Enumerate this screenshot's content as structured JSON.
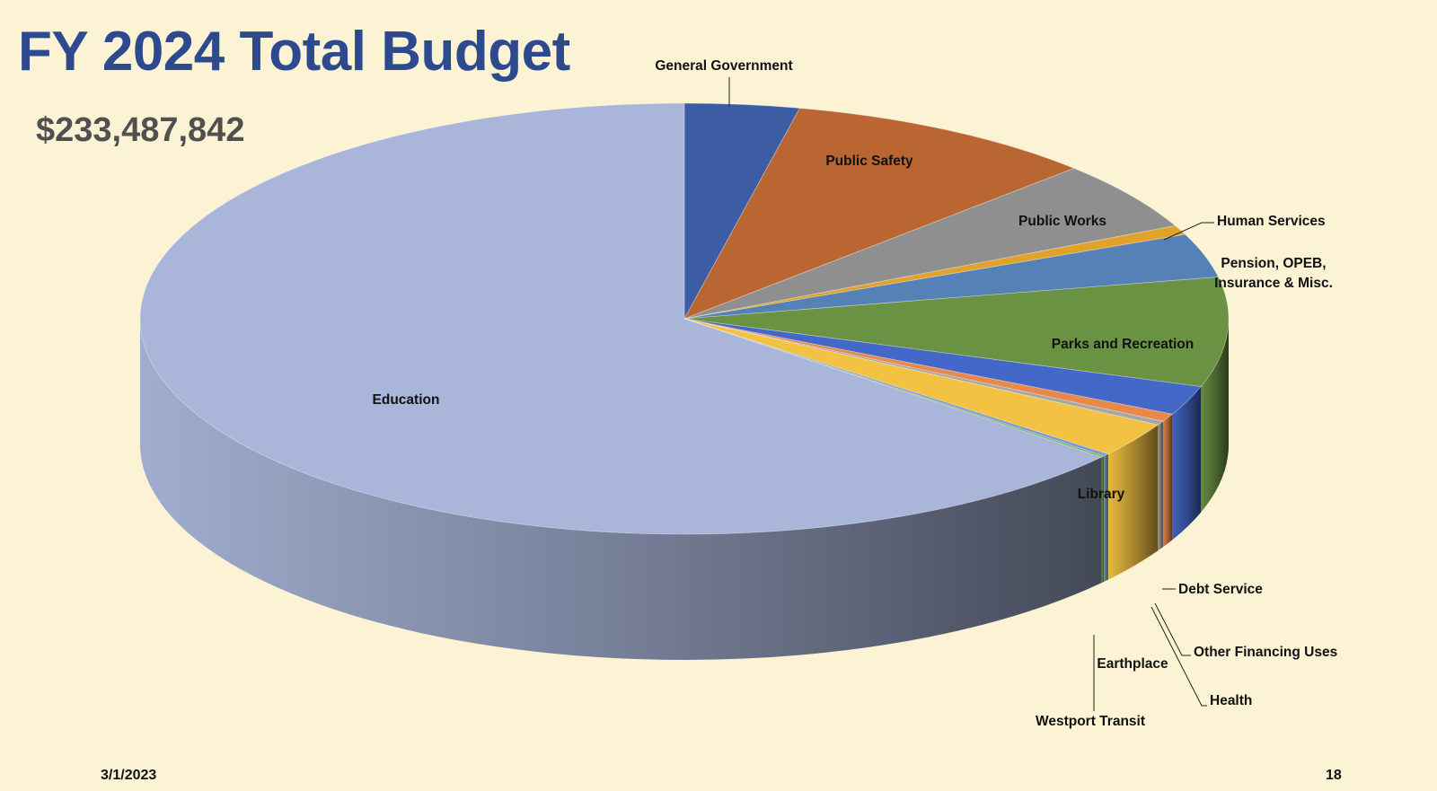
{
  "slide": {
    "title": "FY 2024 Total Budget",
    "total": "$233,487,842",
    "date": "3/1/2023",
    "page_number": "18",
    "background": "#FCF3D5",
    "title_color": "#2E4A8E"
  },
  "chart_data": {
    "type": "pie",
    "title": "FY 2024 Total Budget",
    "subtitle": "$233,487,842",
    "style": "3d-exploded-pie",
    "legend": "none (labels on and beside slices)",
    "slices": [
      {
        "label": "General Government",
        "value_pct": 3.4,
        "color": "#3C5DA3"
      },
      {
        "label": "Public Safety",
        "value_pct": 9.3,
        "color": "#B96632"
      },
      {
        "label": "Public Works",
        "value_pct": 5.2,
        "color": "#8F8F8F"
      },
      {
        "label": "Human Services",
        "value_pct": 0.7,
        "color": "#E0A22B"
      },
      {
        "label": "Pension, OPEB, Insurance & Misc.",
        "value_pct": 3.3,
        "color": "#5581B7"
      },
      {
        "label": "Parks and Recreation",
        "value_pct": 8.2,
        "color": "#6A9243"
      },
      {
        "label": "Debt Service",
        "value_pct": 2.2,
        "color": "#4468C8"
      },
      {
        "label": "Other Financing Uses",
        "value_pct": 0.6,
        "color": "#E8884A"
      },
      {
        "label": "Health",
        "value_pct": 0.3,
        "color": "#A6A6A6"
      },
      {
        "label": "Library",
        "value_pct": 2.6,
        "color": "#F4C242"
      },
      {
        "label": "Earthplace",
        "value_pct": 0.2,
        "color": "#7C9BD2"
      },
      {
        "label": "Westport Transit",
        "value_pct": 0.1,
        "color": "#73A848"
      },
      {
        "label": "Education",
        "value_pct": 63.9,
        "color": "#A9B6D9"
      }
    ]
  }
}
